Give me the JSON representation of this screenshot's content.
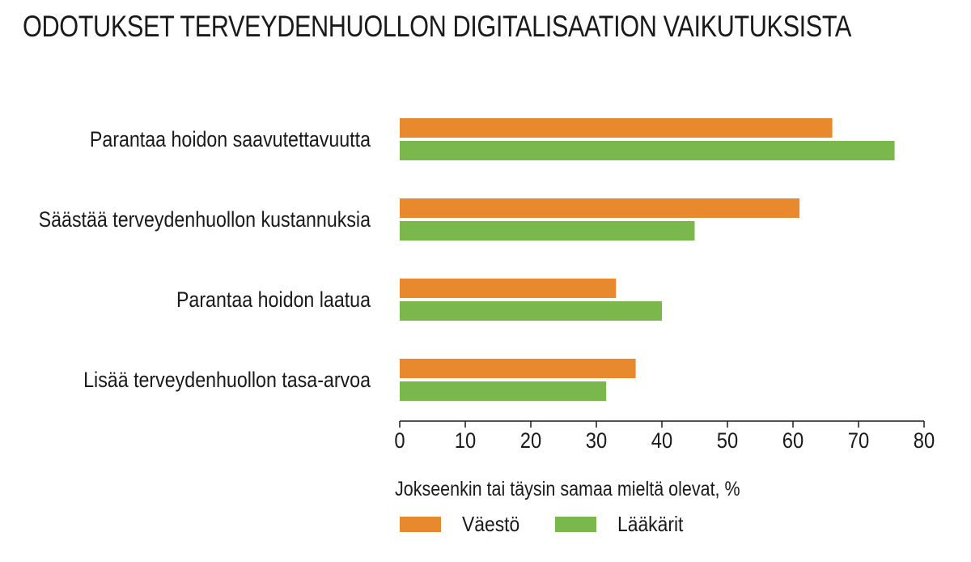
{
  "chart_data": {
    "type": "bar",
    "orientation": "horizontal",
    "title": "ODOTUKSET TERVEYDENHUOLLON DIGITALISAATION VAIKUTUKSISTA",
    "categories": [
      "Parantaa hoidon saavutettavuutta",
      "Säästää terveydenhuollon kustannuksia",
      "Parantaa hoidon laatua",
      "Lisää terveydenhuollon tasa-arvoa"
    ],
    "series": [
      {
        "name": "Väestö",
        "color": "#E8892E",
        "values": [
          66,
          61,
          33,
          36
        ]
      },
      {
        "name": "Lääkärit",
        "color": "#7AB84E",
        "values": [
          75.5,
          45,
          40,
          31.5
        ]
      }
    ],
    "xticks": [
      "0",
      "10",
      "20",
      "30",
      "40",
      "50",
      "60",
      "70",
      "80"
    ],
    "xlim": [
      0,
      80
    ],
    "xlabel": "Jokseenkin tai täysin samaa mieltä olevat, %",
    "ylabel": "",
    "grid": false,
    "legend_position": "bottom"
  }
}
